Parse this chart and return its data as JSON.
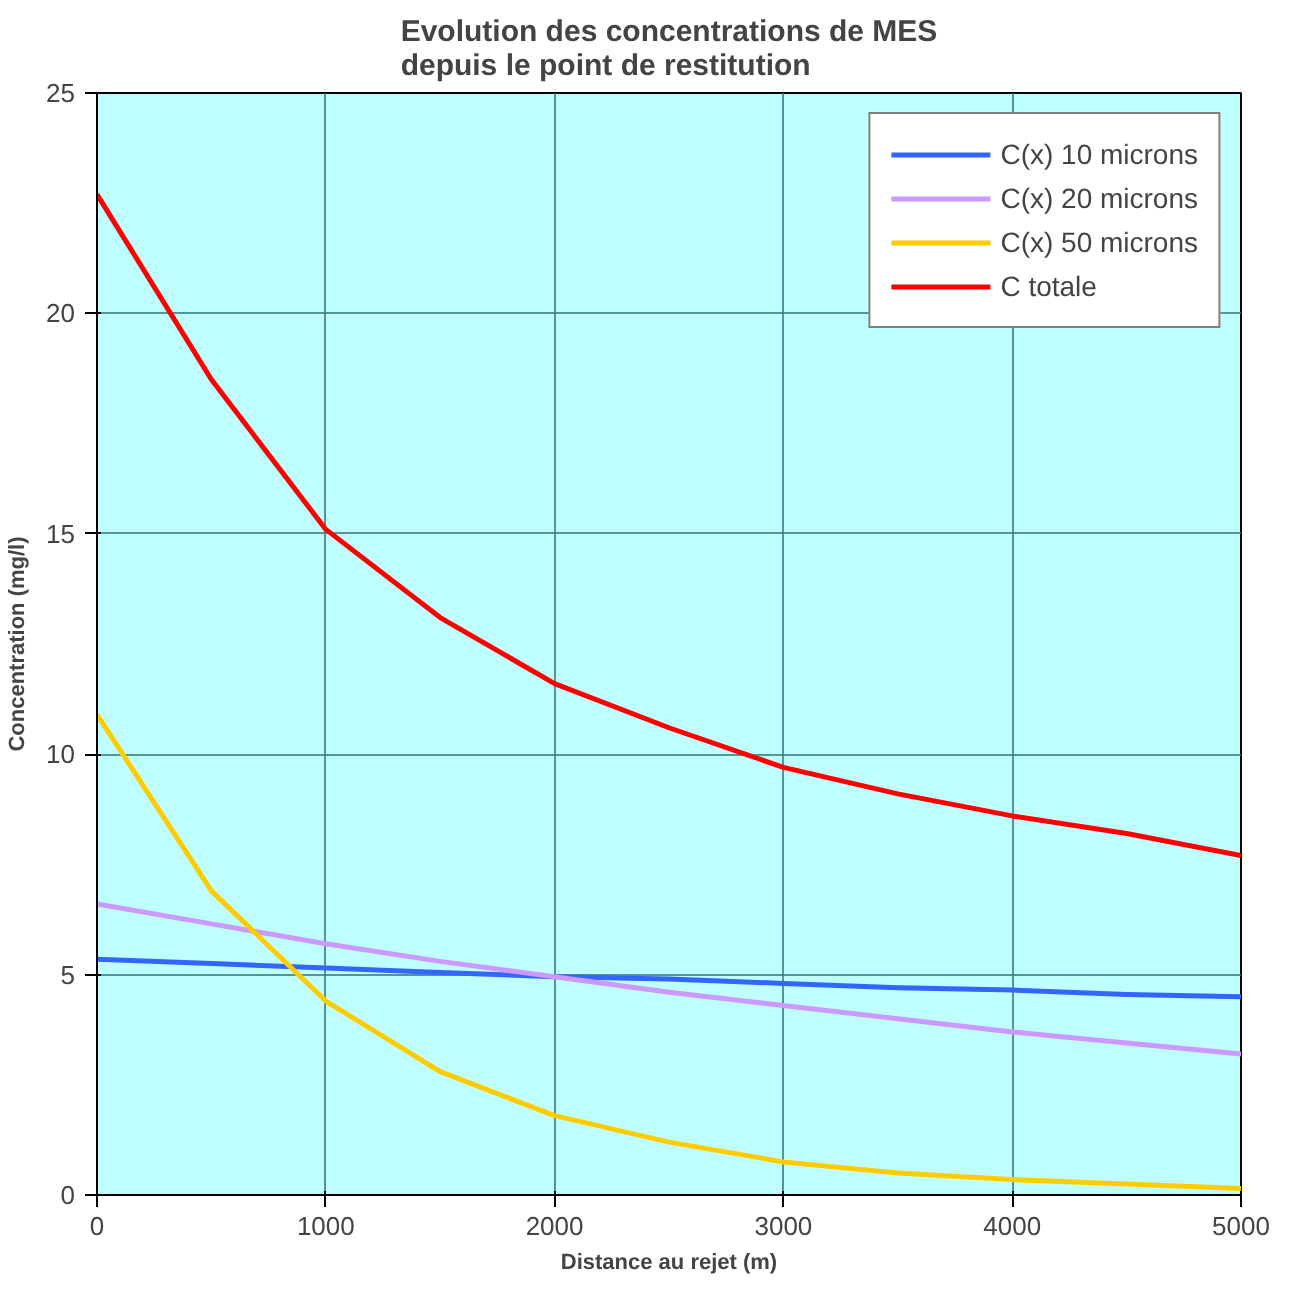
{
  "chart_data": {
    "type": "line",
    "title": "Evolution des concentrations de MES\ndepuis le point de restitution",
    "xlabel": "Distance au rejet (m)",
    "ylabel": "Concentration (mg/l)",
    "x": [
      0,
      500,
      1000,
      1500,
      2000,
      2500,
      3000,
      3500,
      4000,
      4500,
      5000
    ],
    "series": [
      {
        "name": "C(x) 10 microns",
        "color": "#3366ff",
        "values": [
          5.35,
          5.25,
          5.15,
          5.05,
          4.95,
          4.9,
          4.8,
          4.7,
          4.65,
          4.55,
          4.5
        ]
      },
      {
        "name": "C(x) 20 microns",
        "color": "#cc99ff",
        "values": [
          6.6,
          6.15,
          5.7,
          5.3,
          4.95,
          4.6,
          4.3,
          4.0,
          3.7,
          3.45,
          3.2
        ]
      },
      {
        "name": "C(x) 50 microns",
        "color": "#ffcc00",
        "values": [
          10.9,
          6.9,
          4.4,
          2.8,
          1.8,
          1.2,
          0.75,
          0.5,
          0.35,
          0.25,
          0.15
        ]
      },
      {
        "name": "C totale",
        "color": "#ff0000",
        "values": [
          22.7,
          18.5,
          15.1,
          13.1,
          11.6,
          10.6,
          9.7,
          9.1,
          8.6,
          8.2,
          7.7
        ]
      }
    ],
    "xlim": [
      0,
      5000
    ],
    "ylim": [
      0,
      25
    ],
    "xticks": [
      0,
      1000,
      2000,
      3000,
      4000,
      5000
    ],
    "yticks": [
      0,
      5,
      10,
      15,
      20,
      25
    ],
    "grid": true,
    "legend": "top right",
    "marker": "none",
    "line_style": "solid"
  }
}
